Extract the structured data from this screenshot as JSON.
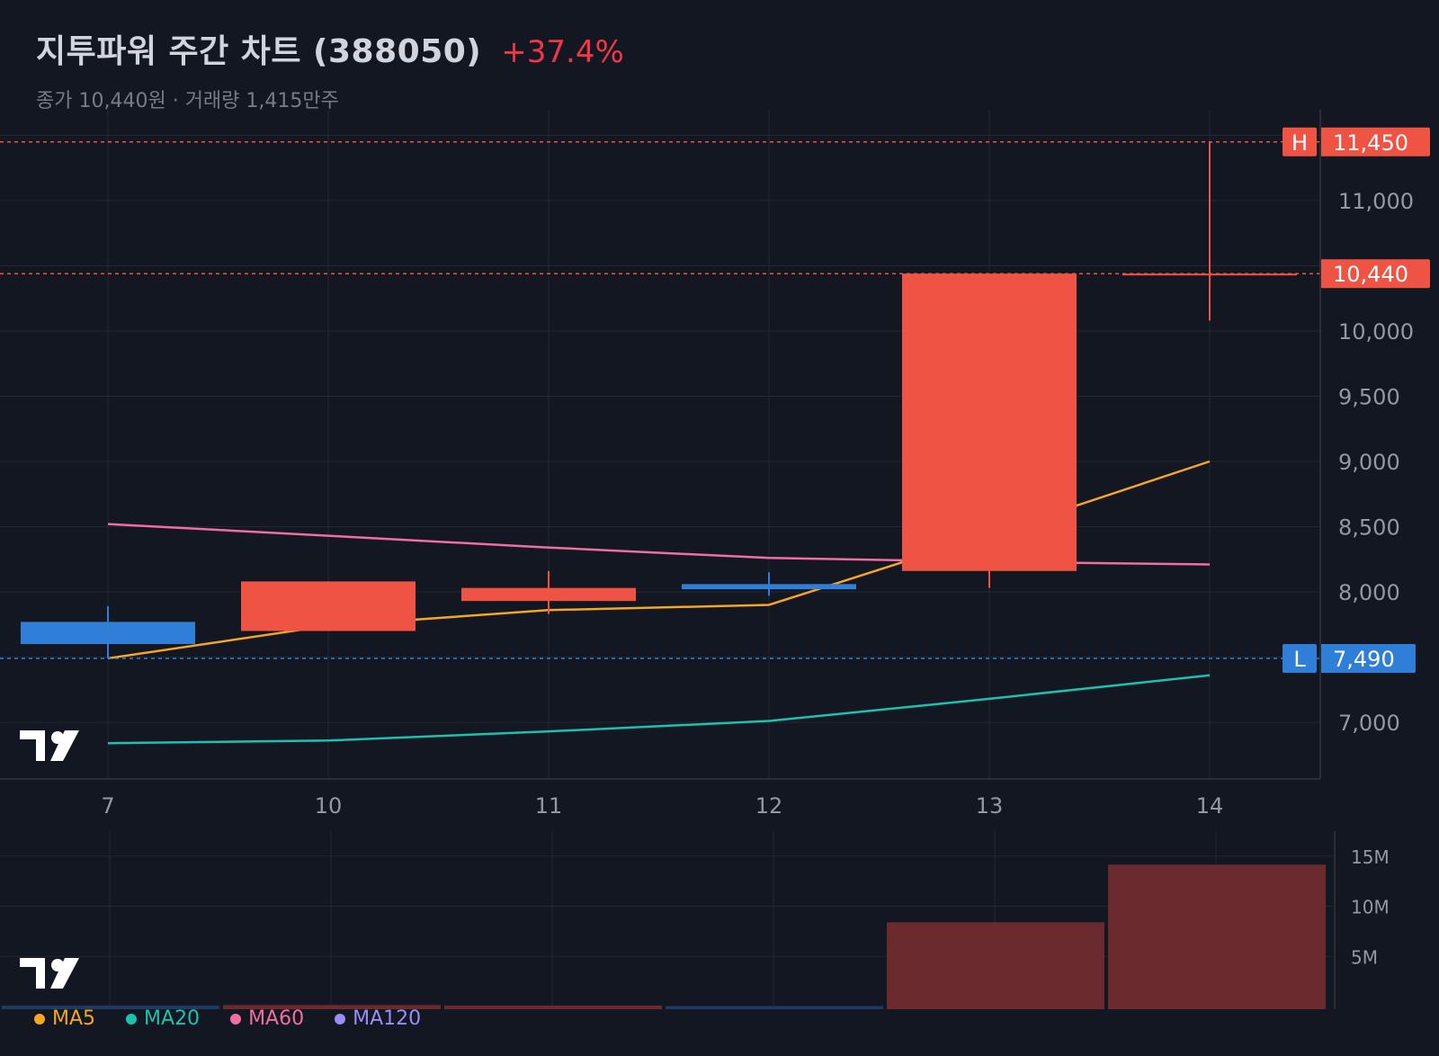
{
  "header": {
    "title": "지투파워 주간 차트 (388050)",
    "change": "+37.4%",
    "close_text": "종가 10,440원",
    "separator": " · ",
    "volume_text": "거래량 1,415만주"
  },
  "colors": {
    "background": "#131722",
    "up": "#ef5343",
    "down": "#2f7ed8",
    "ma5": "#f5a623",
    "ma20": "#1cc2b0",
    "ma60": "#f06fa0",
    "ma120": "#9c8cf5",
    "volume_up": "#6b2b2e",
    "grid": "#232733"
  },
  "chart_data": {
    "type": "candlestick",
    "categories": [
      "7",
      "10",
      "11",
      "12",
      "13",
      "14"
    ],
    "ohlc": [
      {
        "open": 7770,
        "high": 7890,
        "low": 7490,
        "close": 7600
      },
      {
        "open": 7700,
        "high": 8080,
        "low": 7700,
        "close": 8080
      },
      {
        "open": 7930,
        "high": 8160,
        "low": 7830,
        "close": 8030
      },
      {
        "open": 8060,
        "high": 8150,
        "low": 7970,
        "close": 8020
      },
      {
        "open": 8160,
        "high": 10440,
        "low": 8030,
        "close": 10440
      },
      {
        "open": 10440,
        "high": 11450,
        "low": 10080,
        "close": 10440
      }
    ],
    "moving_averages": [
      {
        "name": "MA5",
        "values": [
          7490,
          7740,
          7860,
          7900,
          8440,
          9000
        ]
      },
      {
        "name": "MA20",
        "values": [
          6840,
          6860,
          6930,
          7010,
          7180,
          7360
        ]
      },
      {
        "name": "MA60",
        "values": [
          8520,
          8430,
          8340,
          8260,
          8230,
          8210
        ]
      },
      {
        "name": "MA120",
        "values": []
      }
    ],
    "price_axis": {
      "ticks": [
        7000,
        7500,
        8000,
        8500,
        9000,
        9500,
        10000,
        10500,
        11000,
        11500
      ],
      "tick_labels": [
        "7,000",
        "",
        "8,000",
        "8,500",
        "9,000",
        "9,500",
        "10,000",
        "",
        "11,000",
        ""
      ],
      "range": [
        6550,
        11720
      ]
    },
    "markers": {
      "high": {
        "letter": "H",
        "value": 11450,
        "label": "11,450"
      },
      "last": {
        "value": 10440,
        "label": "10,440"
      },
      "low": {
        "letter": "L",
        "value": 7490,
        "label": "7,490"
      }
    },
    "volume": {
      "values": [
        0.1,
        0.15,
        0.1,
        0.05,
        8.4,
        14.15
      ],
      "unit": "M",
      "ticks": [
        5,
        10,
        15
      ],
      "tick_labels": [
        "5M",
        "10M",
        "15M"
      ],
      "range": [
        0,
        16
      ]
    },
    "legend": [
      "MA5",
      "MA20",
      "MA60",
      "MA120"
    ],
    "grid": true
  }
}
